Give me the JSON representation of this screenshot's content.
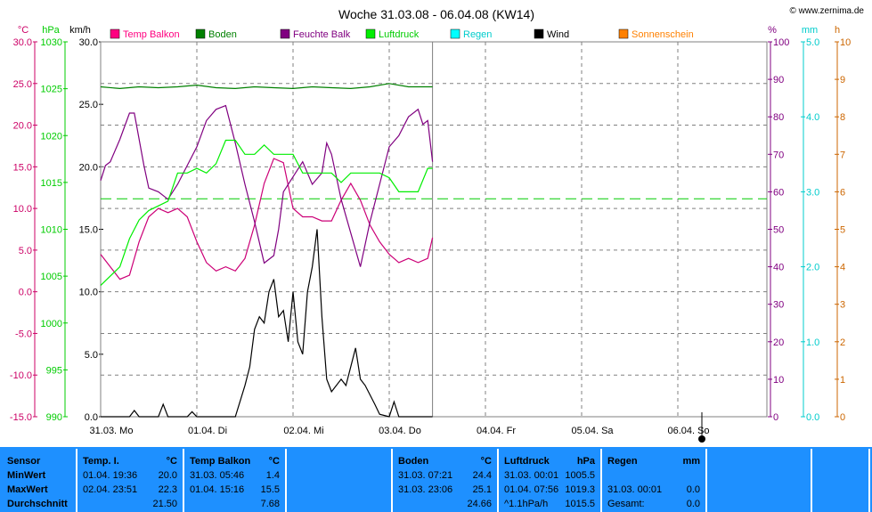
{
  "title": "Woche 31.03.08 - 06.04.08 (KW14)",
  "watermark": "© www.zernima.de",
  "chart_data": {
    "type": "line",
    "x_labels": [
      "31.03.  Mo",
      "01.04.  Di",
      "02.04.  Mi",
      "03.04.  Do",
      "04.04.  Fr",
      "05.04.  Sa",
      "06.04.  So"
    ],
    "x_days": [
      0,
      1,
      2,
      3,
      4,
      5,
      6
    ],
    "xlim": [
      0,
      6.95
    ],
    "axes": [
      {
        "id": "temp",
        "unit": "°C",
        "color": "#cc0066",
        "min": -15,
        "max": 30,
        "ticks": [
          "-15.0",
          "-10.0",
          "-5.0",
          "0.0",
          "5.0",
          "10.0",
          "15.0",
          "20.0",
          "25.0",
          "30.0"
        ]
      },
      {
        "id": "press",
        "unit": "hPa",
        "color": "#00cc00",
        "min": 990,
        "max": 1030,
        "ticks": [
          "990",
          "995",
          "1000",
          "1005",
          "1010",
          "1015",
          "1020",
          "1025",
          "1030"
        ]
      },
      {
        "id": "wind",
        "unit": "km/h",
        "color": "#000000",
        "min": 0,
        "max": 30,
        "ticks": [
          "0.0",
          "5.0",
          "10.0",
          "15.0",
          "20.0",
          "25.0",
          "30.0"
        ]
      },
      {
        "id": "hum",
        "unit": "%",
        "color": "#800080",
        "min": 0,
        "max": 100,
        "ticks": [
          "0",
          "10",
          "20",
          "30",
          "40",
          "50",
          "60",
          "70",
          "80",
          "90",
          "100"
        ]
      },
      {
        "id": "rain",
        "unit": "mm",
        "color": "#00cccc",
        "min": 0,
        "max": 5,
        "ticks": [
          "0.0",
          "1.0",
          "2.0",
          "3.0",
          "4.0",
          "5.0"
        ]
      },
      {
        "id": "sun",
        "unit": "h",
        "color": "#cc6600",
        "min": 0,
        "max": 10,
        "ticks": [
          "0",
          "1",
          "2",
          "3",
          "4",
          "5",
          "6",
          "7",
          "8",
          "9",
          "10"
        ]
      }
    ],
    "legend": [
      {
        "name": "Temp Balkon",
        "color": "#ff0080"
      },
      {
        "name": "Boden",
        "color": "#008000"
      },
      {
        "name": "Feuchte Balk",
        "color": "#800080"
      },
      {
        "name": "Luftdruck",
        "color": "#00ee00"
      },
      {
        "name": "Regen",
        "color": "#00ffff"
      },
      {
        "name": "Wind",
        "color": "#000000"
      },
      {
        "name": "Sonnenschein",
        "color": "#ff8000"
      }
    ],
    "series": [
      {
        "name": "Temp Balkon",
        "axis": "temp",
        "color": "#cc0077",
        "points": [
          [
            0,
            4.5
          ],
          [
            0.1,
            3
          ],
          [
            0.2,
            1.5
          ],
          [
            0.3,
            2
          ],
          [
            0.4,
            6
          ],
          [
            0.5,
            9
          ],
          [
            0.6,
            10
          ],
          [
            0.7,
            9.5
          ],
          [
            0.8,
            10
          ],
          [
            0.9,
            9
          ],
          [
            1.0,
            6
          ],
          [
            1.1,
            3.5
          ],
          [
            1.2,
            2.5
          ],
          [
            1.3,
            3
          ],
          [
            1.4,
            2.5
          ],
          [
            1.5,
            4
          ],
          [
            1.6,
            8
          ],
          [
            1.7,
            13
          ],
          [
            1.8,
            16
          ],
          [
            1.9,
            15.5
          ],
          [
            2.0,
            10
          ],
          [
            2.1,
            9
          ],
          [
            2.2,
            9
          ],
          [
            2.3,
            8.5
          ],
          [
            2.4,
            8.5
          ],
          [
            2.5,
            11
          ],
          [
            2.6,
            13
          ],
          [
            2.7,
            11
          ],
          [
            2.8,
            8
          ],
          [
            2.9,
            6
          ],
          [
            3.0,
            4.5
          ],
          [
            3.1,
            3.5
          ],
          [
            3.2,
            4
          ],
          [
            3.3,
            3.5
          ],
          [
            3.4,
            4
          ],
          [
            3.45,
            6.5
          ]
        ]
      },
      {
        "name": "Boden",
        "axis": "temp",
        "color": "#008000",
        "points": [
          [
            0,
            24.6
          ],
          [
            0.2,
            24.4
          ],
          [
            0.4,
            24.6
          ],
          [
            0.6,
            24.5
          ],
          [
            0.8,
            24.6
          ],
          [
            1.0,
            24.8
          ],
          [
            1.2,
            24.5
          ],
          [
            1.4,
            24.4
          ],
          [
            1.6,
            24.6
          ],
          [
            1.8,
            24.5
          ],
          [
            2.0,
            24.4
          ],
          [
            2.2,
            24.6
          ],
          [
            2.4,
            24.5
          ],
          [
            2.6,
            24.4
          ],
          [
            2.8,
            24.6
          ],
          [
            3.0,
            25
          ],
          [
            3.2,
            24.6
          ],
          [
            3.45,
            24.6
          ]
        ]
      },
      {
        "name": "Feuchte Balk",
        "axis": "hum",
        "color": "#800080",
        "points": [
          [
            0,
            63
          ],
          [
            0.05,
            67
          ],
          [
            0.1,
            68
          ],
          [
            0.2,
            74
          ],
          [
            0.3,
            81
          ],
          [
            0.35,
            81
          ],
          [
            0.45,
            67
          ],
          [
            0.5,
            61
          ],
          [
            0.6,
            60
          ],
          [
            0.7,
            58
          ],
          [
            0.8,
            62
          ],
          [
            0.9,
            67
          ],
          [
            1.0,
            72
          ],
          [
            1.1,
            79
          ],
          [
            1.2,
            82
          ],
          [
            1.3,
            83
          ],
          [
            1.4,
            73
          ],
          [
            1.5,
            62
          ],
          [
            1.6,
            52
          ],
          [
            1.7,
            41
          ],
          [
            1.8,
            43
          ],
          [
            1.85,
            50
          ],
          [
            1.9,
            60
          ],
          [
            2.0,
            64
          ],
          [
            2.1,
            68
          ],
          [
            2.2,
            62
          ],
          [
            2.3,
            65
          ],
          [
            2.35,
            73
          ],
          [
            2.4,
            70
          ],
          [
            2.5,
            58
          ],
          [
            2.6,
            49
          ],
          [
            2.7,
            40
          ],
          [
            2.8,
            52
          ],
          [
            2.9,
            62
          ],
          [
            3.0,
            72
          ],
          [
            3.1,
            75
          ],
          [
            3.2,
            80
          ],
          [
            3.3,
            82
          ],
          [
            3.35,
            78
          ],
          [
            3.4,
            79
          ],
          [
            3.45,
            68
          ]
        ]
      },
      {
        "name": "Luftdruck",
        "axis": "press",
        "color": "#00ee00",
        "points": [
          [
            0,
            1004
          ],
          [
            0.1,
            1005
          ],
          [
            0.2,
            1006
          ],
          [
            0.3,
            1009
          ],
          [
            0.4,
            1011
          ],
          [
            0.5,
            1012
          ],
          [
            0.6,
            1012.5
          ],
          [
            0.7,
            1013
          ],
          [
            0.8,
            1016
          ],
          [
            0.9,
            1016
          ],
          [
            1.0,
            1016.5
          ],
          [
            1.1,
            1016
          ],
          [
            1.2,
            1017
          ],
          [
            1.3,
            1019.5
          ],
          [
            1.4,
            1019.5
          ],
          [
            1.5,
            1018
          ],
          [
            1.6,
            1018
          ],
          [
            1.7,
            1019
          ],
          [
            1.8,
            1018
          ],
          [
            1.9,
            1018
          ],
          [
            2.0,
            1018
          ],
          [
            2.1,
            1016
          ],
          [
            2.2,
            1016
          ],
          [
            2.3,
            1016
          ],
          [
            2.4,
            1016
          ],
          [
            2.5,
            1015
          ],
          [
            2.6,
            1016
          ],
          [
            2.7,
            1016
          ],
          [
            2.8,
            1016
          ],
          [
            2.9,
            1016
          ],
          [
            3.0,
            1015.5
          ],
          [
            3.1,
            1014
          ],
          [
            3.2,
            1014
          ],
          [
            3.3,
            1014
          ],
          [
            3.4,
            1016.5
          ],
          [
            3.45,
            1016.5
          ]
        ]
      },
      {
        "name": "Wind",
        "axis": "wind",
        "color": "#000000",
        "points": [
          [
            0,
            0
          ],
          [
            0.3,
            0
          ],
          [
            0.35,
            0.5
          ],
          [
            0.4,
            0
          ],
          [
            0.6,
            0
          ],
          [
            0.65,
            1
          ],
          [
            0.7,
            0
          ],
          [
            0.9,
            0
          ],
          [
            0.95,
            0.4
          ],
          [
            1.0,
            0
          ],
          [
            1.4,
            0
          ],
          [
            1.5,
            2.5
          ],
          [
            1.55,
            4
          ],
          [
            1.6,
            7
          ],
          [
            1.65,
            8
          ],
          [
            1.7,
            7.5
          ],
          [
            1.75,
            10
          ],
          [
            1.8,
            11
          ],
          [
            1.85,
            8
          ],
          [
            1.9,
            8.5
          ],
          [
            1.95,
            6
          ],
          [
            2.0,
            10
          ],
          [
            2.05,
            6
          ],
          [
            2.1,
            5
          ],
          [
            2.15,
            10
          ],
          [
            2.2,
            12
          ],
          [
            2.25,
            15
          ],
          [
            2.3,
            8
          ],
          [
            2.35,
            3
          ],
          [
            2.4,
            2
          ],
          [
            2.5,
            3
          ],
          [
            2.55,
            2.5
          ],
          [
            2.65,
            5.5
          ],
          [
            2.7,
            3
          ],
          [
            2.75,
            2.5
          ],
          [
            2.85,
            1
          ],
          [
            2.9,
            0.2
          ],
          [
            3.0,
            0
          ],
          [
            3.05,
            1.2
          ],
          [
            3.1,
            0
          ],
          [
            3.3,
            0
          ],
          [
            3.45,
            0
          ]
        ]
      }
    ],
    "reference_line": {
      "axis": "press",
      "value": 1013.25,
      "color": "#00cc00",
      "dashed": true
    },
    "grid": true,
    "current_time_day": 3.45
  },
  "stats_table": {
    "labels_col": {
      "header": "Sensor",
      "rows": [
        "MinWert",
        "MaxWert",
        "Durchschnitt"
      ]
    },
    "panels": [
      {
        "name": "Temp. I.",
        "unit": "°C",
        "min": [
          "01.04.  19:36",
          "20.0"
        ],
        "max": [
          "02.04.  23:51",
          "22.3"
        ],
        "avg": [
          "",
          "21.50"
        ]
      },
      {
        "name": "Temp Balkon",
        "unit": "°C",
        "min": [
          "31.03.  05:46",
          "1.4"
        ],
        "max": [
          "01.04.  15:16",
          "15.5"
        ],
        "avg": [
          "",
          "7.68"
        ]
      },
      {
        "name": "",
        "unit": "",
        "min": [
          "",
          ""
        ],
        "max": [
          "",
          ""
        ],
        "avg": [
          "",
          ""
        ]
      },
      {
        "name": "Boden",
        "unit": "°C",
        "min": [
          "31.03.  07:21",
          "24.4"
        ],
        "max": [
          "31.03.  23:06",
          "25.1"
        ],
        "avg": [
          "",
          "24.66"
        ]
      },
      {
        "name": "Luftdruck",
        "unit": "hPa",
        "min": [
          "31.03.  00:01",
          "1005.5"
        ],
        "max": [
          "01.04.  07:56",
          "1019.3"
        ],
        "avg": [
          "^1.1hPa/h",
          "1015.5"
        ]
      },
      {
        "name": "Regen",
        "unit": "mm",
        "min": [
          "",
          ""
        ],
        "max": [
          "31.03.  00:01",
          "0.0"
        ],
        "avg": [
          "Gesamt:",
          "0.0"
        ]
      },
      {
        "name": "",
        "unit": "",
        "min": [
          "",
          ""
        ],
        "max": [
          "",
          ""
        ],
        "avg": [
          "",
          ""
        ]
      },
      {
        "name": "",
        "unit": "",
        "min": [
          "",
          ""
        ],
        "max": [
          "",
          ""
        ],
        "avg": [
          "",
          ""
        ]
      }
    ]
  }
}
